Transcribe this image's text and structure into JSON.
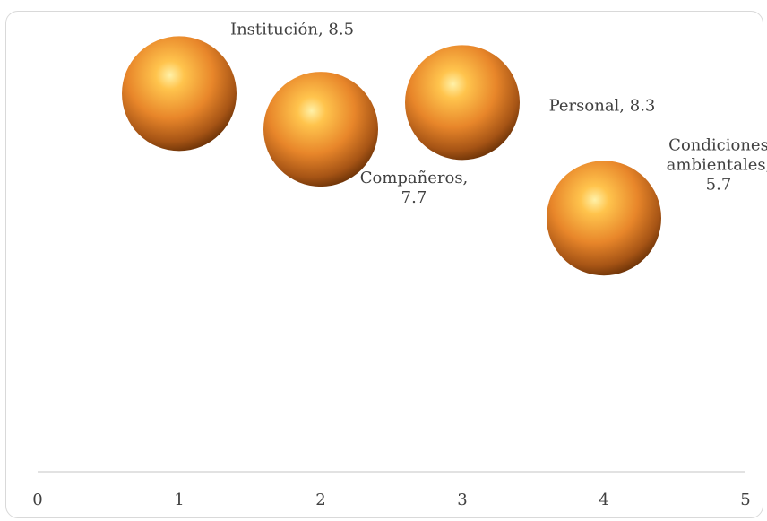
{
  "chart_data": {
    "type": "bubble",
    "title": "",
    "xlabel": "",
    "ylabel": "",
    "xlim": [
      0,
      5
    ],
    "ylim": [
      0,
      10
    ],
    "x_ticks": [
      "0",
      "1",
      "2",
      "3",
      "4",
      "5"
    ],
    "grid": false,
    "legend": "none",
    "bubble_color": "#e8862a",
    "points": [
      {
        "name": "Institución",
        "x": 1,
        "y": 8.5,
        "label_lines": [
          "Institución, 8.5"
        ],
        "label_side": "top-right"
      },
      {
        "name": "Compañeros",
        "x": 2,
        "y": 7.7,
        "label_lines": [
          "Compañeros,",
          "7.7"
        ],
        "label_side": "bottom-right"
      },
      {
        "name": "Personal",
        "x": 3,
        "y": 8.3,
        "label_lines": [
          "Personal, 8.3"
        ],
        "label_side": "right"
      },
      {
        "name": "Condiciones ambientales",
        "x": 4,
        "y": 5.7,
        "label_lines": [
          "Condiciones",
          "ambientales,",
          "5.7"
        ],
        "label_side": "top-right"
      }
    ]
  }
}
